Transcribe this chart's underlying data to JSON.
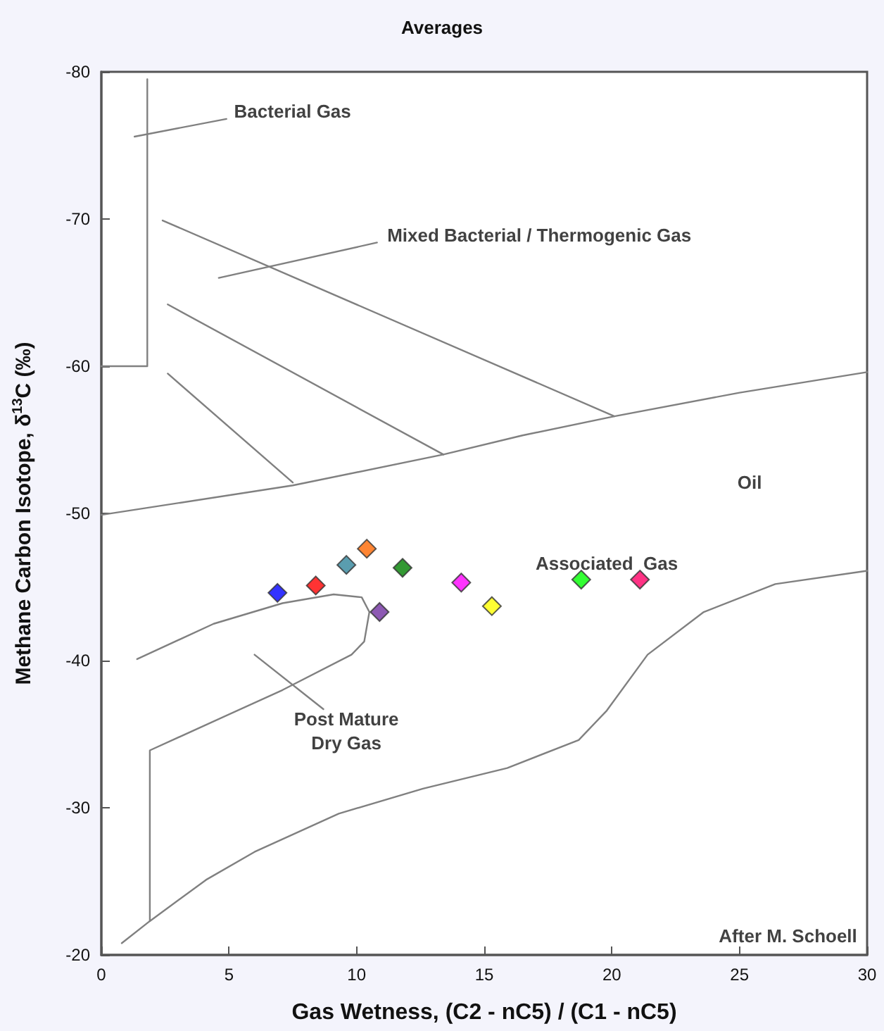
{
  "chart_data": {
    "type": "scatter",
    "title": "Averages",
    "xlabel": "Gas Wetness, (C2 - nC5) / (C1 - nC5)",
    "ylabel": "Methane Carbon Isotope, δ$^{13}$C (‰)",
    "xlim": [
      0,
      30
    ],
    "xticks": [
      0,
      5,
      10,
      15,
      20,
      25,
      30
    ],
    "ylim": [
      -20,
      -80
    ],
    "yticks": [
      -20,
      -30,
      -40,
      -50,
      -60,
      -70,
      -80
    ],
    "grid": false,
    "annotations": [
      "Bacterial Gas",
      "Mixed Bacterial / Thermogenic Gas",
      "Oil",
      "Associated  Gas",
      "Post Mature\nDry Gas",
      "After M. Schoell"
    ],
    "series": [
      {
        "marker": "diamond",
        "x": [
          6.9,
          8.4,
          9.6,
          10.4,
          11.8,
          10.9,
          14.1,
          15.3,
          18.8,
          21.1
        ],
        "values": [
          -44.6,
          -45.1,
          -46.5,
          -47.6,
          -46.3,
          -43.3,
          -45.3,
          -43.7,
          -45.5,
          -45.5
        ],
        "colors": [
          "#0000ff",
          "#ff0000",
          "#31849b",
          "#ff6600",
          "#008000",
          "#7030a0",
          "#ff00ff",
          "#ffff00",
          "#00ff00",
          "#ff0066"
        ]
      },
      {
        "type": "line",
        "marker": "none",
        "color": "#808080",
        "x": [
          0,
          1.8,
          1.8
        ],
        "values": [
          -60,
          -60,
          -79.5
        ]
      },
      {
        "type": "line",
        "marker": "none",
        "color": "#808080",
        "x": [
          1.3,
          4.9
        ],
        "values": [
          -75.6,
          -76.8
        ]
      },
      {
        "type": "line",
        "marker": "none",
        "color": "#808080",
        "x": [
          2.4,
          20.1
        ],
        "values": [
          -69.9,
          -56.6
        ]
      },
      {
        "type": "line",
        "marker": "none",
        "color": "#808080",
        "x": [
          4.6,
          10.8
        ],
        "values": [
          -66.0,
          -68.4
        ]
      },
      {
        "type": "line",
        "marker": "none",
        "color": "#808080",
        "x": [
          2.6,
          13.4
        ],
        "values": [
          -64.2,
          -54.0
        ]
      },
      {
        "type": "line",
        "marker": "none",
        "color": "#808080",
        "x": [
          2.6,
          7.5
        ],
        "values": [
          -59.5,
          -52.1
        ]
      },
      {
        "type": "line",
        "marker": "none",
        "color": "#808080",
        "x": [
          0,
          7.5,
          13.4,
          16.5,
          20.1,
          25,
          30
        ],
        "values": [
          -49.9,
          -51.9,
          -54.0,
          -55.3,
          -56.6,
          -58.2,
          -59.6
        ]
      },
      {
        "type": "line",
        "marker": "none",
        "color": "#808080",
        "x": [
          1.4,
          4.4,
          7.1,
          9.1,
          10.2,
          10.5,
          10.3,
          9.8,
          7.1,
          1.9,
          1.9
        ],
        "values": [
          -40.1,
          -42.5,
          -43.9,
          -44.5,
          -44.3,
          -43.3,
          -41.3,
          -40.4,
          -38.0,
          -33.9,
          -22.3
        ]
      },
      {
        "type": "line",
        "marker": "none",
        "color": "#808080",
        "x": [
          0.8,
          1.9,
          4.1,
          6.0,
          9.3,
          12.6,
          15.9,
          18.7,
          19.8,
          21.4,
          23.6,
          26.4,
          30
        ],
        "values": [
          -20.8,
          -22.3,
          -25.1,
          -27.0,
          -29.6,
          -31.3,
          -32.7,
          -34.6,
          -36.6,
          -40.4,
          -43.3,
          -45.2,
          -46.1
        ]
      },
      {
        "type": "line",
        "marker": "none",
        "color": "#808080",
        "x": [
          6.0,
          8.7
        ],
        "values": [
          -40.4,
          -36.7
        ]
      }
    ]
  }
}
